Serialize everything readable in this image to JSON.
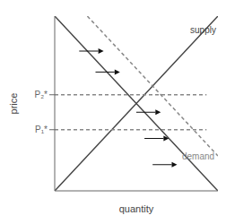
{
  "chart_data": {
    "type": "line",
    "xlabel": "quantity",
    "ylabel": "price",
    "xlim": [
      0,
      10
    ],
    "ylim": [
      0,
      10
    ],
    "xticks": [],
    "yticks": [
      {
        "value": 3.5,
        "label": "P₁*"
      },
      {
        "value": 5.5,
        "label": "P₂*"
      }
    ],
    "tick_labels": "y",
    "grid": false,
    "series": [
      {
        "x": [
          0,
          10
        ],
        "values": [
          0,
          10
        ],
        "color": "#444444",
        "line_style": "solid",
        "marker": "none"
      },
      {
        "x": [
          0,
          10
        ],
        "values": [
          10,
          0
        ],
        "color": "#444444",
        "line_style": "solid",
        "marker": "none"
      },
      {
        "x": [
          2,
          10
        ],
        "values": [
          10,
          2
        ],
        "color": "#888888",
        "line_style": "dashed",
        "marker": "none"
      },
      {
        "x": [
          0,
          9.3
        ],
        "values": [
          3.5,
          3.5
        ],
        "color": "#888888",
        "line_style": "dashed",
        "marker": "none"
      },
      {
        "x": [
          0,
          9.3
        ],
        "values": [
          5.5,
          5.5
        ],
        "color": "#888888",
        "line_style": "dashed",
        "marker": "none"
      }
    ],
    "arrows": [
      {
        "x": 1.5,
        "y": 8.0,
        "x_end": 3.0,
        "y_end": 8.0,
        "color": "#111111"
      },
      {
        "x": 2.5,
        "y": 6.8,
        "x_end": 4.0,
        "y_end": 6.8,
        "color": "#111111"
      },
      {
        "x": 5.0,
        "y": 4.5,
        "x_end": 6.5,
        "y_end": 4.5,
        "color": "#111111"
      },
      {
        "x": 5.5,
        "y": 3.0,
        "x_end": 7.0,
        "y_end": 3.0,
        "color": "#111111"
      },
      {
        "x": 6.0,
        "y": 1.5,
        "x_end": 7.5,
        "y_end": 1.5,
        "color": "#111111"
      }
    ],
    "annotations": [
      {
        "text": "supply",
        "x": 8.3,
        "y": 9.2,
        "color": "#444444"
      },
      {
        "text": "demand",
        "x": 7.8,
        "y": 2.0,
        "color": "#888888"
      }
    ]
  }
}
